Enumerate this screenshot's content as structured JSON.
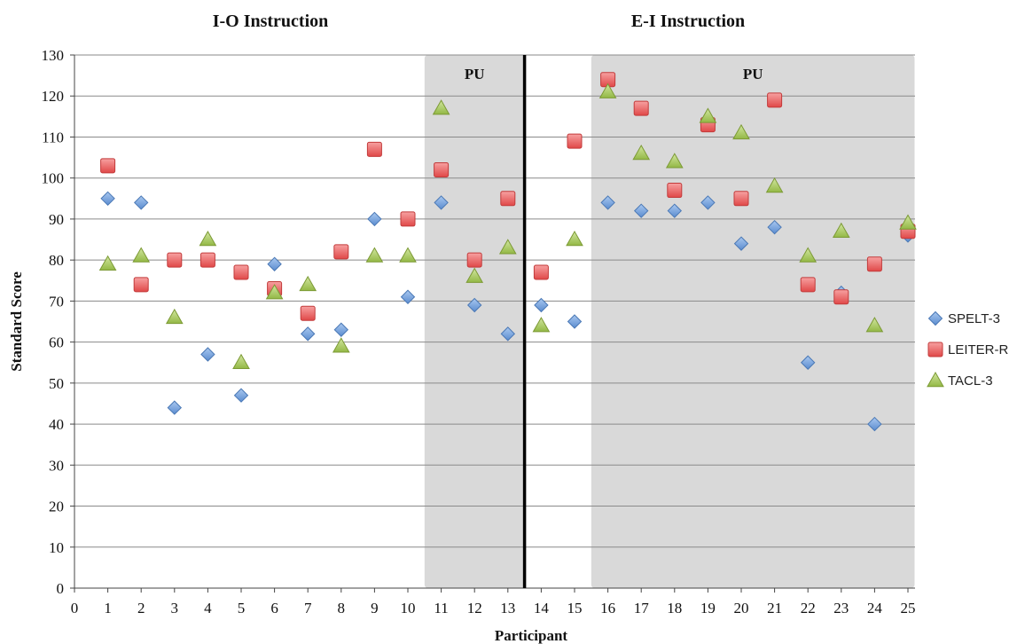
{
  "chart_data": {
    "type": "scatter",
    "section_titles": [
      "I-O Instruction",
      "E-I Instruction"
    ],
    "xlabel": "Participant",
    "ylabel": "Standard Score",
    "xlim": [
      0,
      25
    ],
    "ylim": [
      0,
      130
    ],
    "x_ticks": [
      0,
      1,
      2,
      3,
      4,
      5,
      6,
      7,
      8,
      9,
      10,
      11,
      12,
      13,
      14,
      15,
      16,
      17,
      18,
      19,
      20,
      21,
      22,
      23,
      24,
      25
    ],
    "y_ticks": [
      0,
      10,
      20,
      30,
      40,
      50,
      60,
      70,
      80,
      90,
      100,
      110,
      120,
      130
    ],
    "grid": "horizontal",
    "legend_position": "right",
    "shaded_regions": [
      {
        "label": "PU",
        "x_from": 10.5,
        "x_to": 13.5
      },
      {
        "label": "PU",
        "x_from": 15.5,
        "x_to": 25.2
      }
    ],
    "divider_x": 13.5,
    "series": [
      {
        "name": "SPELT-3",
        "marker": "diamond",
        "color": "#6f9fd8",
        "x": [
          1,
          2,
          3,
          4,
          5,
          6,
          7,
          8,
          9,
          10,
          11,
          12,
          13,
          14,
          15,
          16,
          17,
          18,
          19,
          20,
          21,
          22,
          23,
          24,
          25
        ],
        "values": [
          95,
          94,
          44,
          57,
          47,
          79,
          62,
          63,
          90,
          71,
          94,
          69,
          62,
          69,
          65,
          94,
          92,
          92,
          94,
          84,
          88,
          55,
          72,
          40,
          86
        ]
      },
      {
        "name": "LEITER-R",
        "marker": "square",
        "color": "#e8585a",
        "x": [
          1,
          2,
          3,
          4,
          5,
          6,
          7,
          8,
          9,
          10,
          11,
          12,
          13,
          14,
          15,
          16,
          17,
          18,
          19,
          20,
          21,
          22,
          23,
          24,
          25
        ],
        "values": [
          103,
          74,
          80,
          80,
          77,
          73,
          67,
          82,
          107,
          90,
          102,
          80,
          95,
          77,
          109,
          124,
          117,
          97,
          113,
          95,
          119,
          74,
          71,
          79,
          87
        ]
      },
      {
        "name": "TACL-3",
        "marker": "triangle",
        "color": "#a9c95a",
        "x": [
          1,
          2,
          3,
          4,
          5,
          6,
          7,
          8,
          9,
          10,
          11,
          12,
          13,
          14,
          15,
          16,
          17,
          18,
          19,
          20,
          21,
          22,
          23,
          24,
          25
        ],
        "values": [
          79,
          81,
          66,
          85,
          55,
          72,
          74,
          59,
          81,
          81,
          117,
          76,
          83,
          64,
          85,
          121,
          106,
          104,
          115,
          111,
          98,
          81,
          87,
          64,
          89
        ]
      }
    ]
  }
}
